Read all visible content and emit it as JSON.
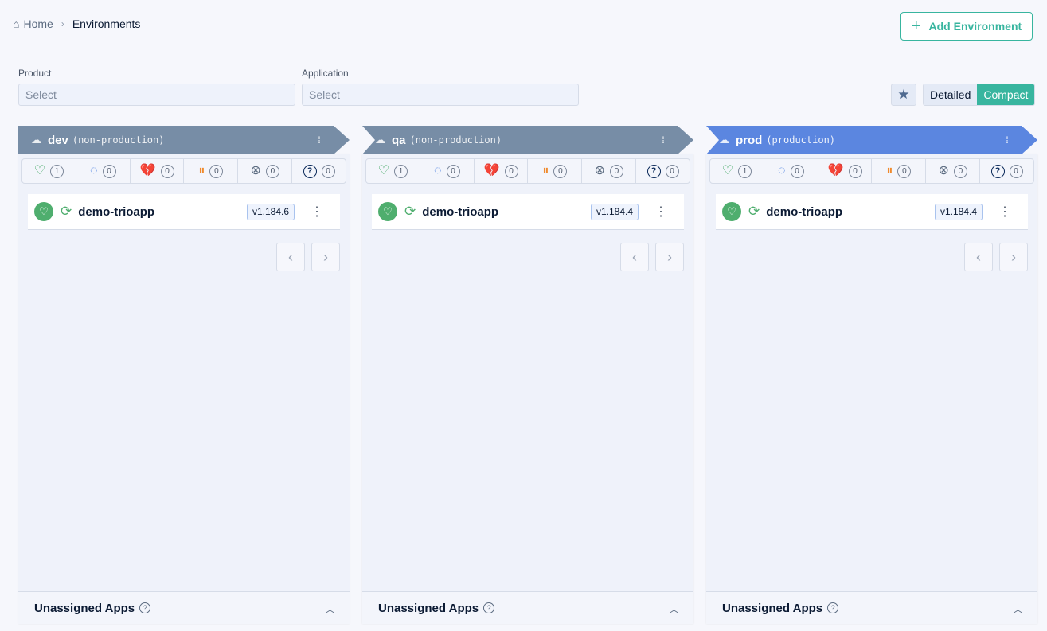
{
  "breadcrumb": {
    "home": "Home",
    "current": "Environments"
  },
  "add_environment": "Add Environment",
  "filters": {
    "product": {
      "label": "Product",
      "placeholder": "Select"
    },
    "application": {
      "label": "Application",
      "placeholder": "Select"
    }
  },
  "view_toggle": {
    "detailed": "Detailed",
    "compact": "Compact",
    "active": "Compact"
  },
  "colors": {
    "accent": "#38b59f",
    "nonprod_header": "#778da6",
    "prod_header": "#5b86e0"
  },
  "environments": [
    {
      "name": "dev",
      "kind": "(non-production)",
      "color": "#778da6",
      "stats": {
        "healthy": "1",
        "progressing": "0",
        "degraded": "0",
        "suspended": "0",
        "missing": "0",
        "unknown": "0"
      },
      "apps": [
        {
          "name": "demo-trioapp",
          "version": "v1.184.6"
        }
      ],
      "footer": "Unassigned Apps"
    },
    {
      "name": "qa",
      "kind": "(non-production)",
      "color": "#778da6",
      "stats": {
        "healthy": "1",
        "progressing": "0",
        "degraded": "0",
        "suspended": "0",
        "missing": "0",
        "unknown": "0"
      },
      "apps": [
        {
          "name": "demo-trioapp",
          "version": "v1.184.4"
        }
      ],
      "footer": "Unassigned Apps"
    },
    {
      "name": "prod",
      "kind": "(production)",
      "color": "#5b86e0",
      "stats": {
        "healthy": "1",
        "progressing": "0",
        "degraded": "0",
        "suspended": "0",
        "missing": "0",
        "unknown": "0"
      },
      "apps": [
        {
          "name": "demo-trioapp",
          "version": "v1.184.4"
        }
      ],
      "footer": "Unassigned Apps"
    }
  ]
}
